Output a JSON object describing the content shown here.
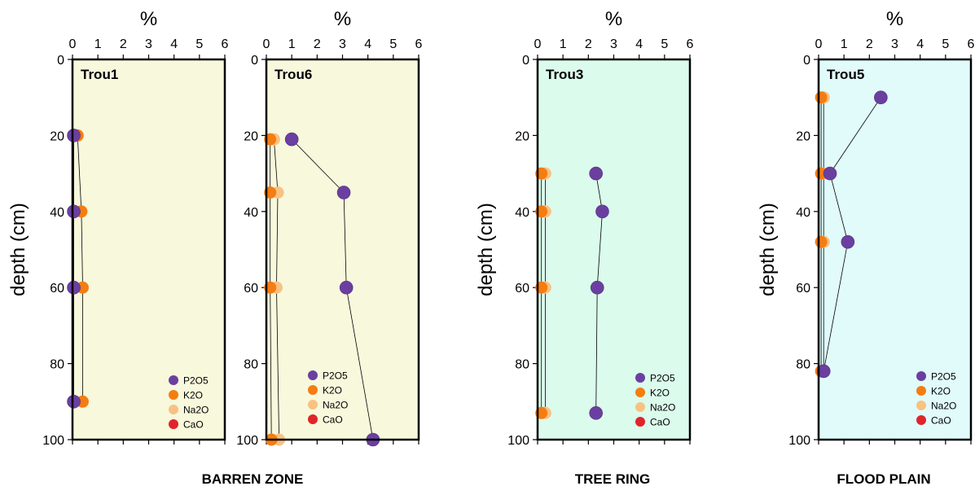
{
  "colors": {
    "P2O5": "#6b3fa0",
    "K2O": "#f47d12",
    "Na2O": "#f9c182",
    "CaO": "#e0242b",
    "barren_bg": "#f7f8dc",
    "treering_bg": "#dbfbec",
    "flood_bg": "#e0fbfa"
  },
  "chart_data": [
    {
      "type": "line",
      "title": "Trou1",
      "xlabel": "%",
      "ylabel": "depth (cm)",
      "xlim": [
        0,
        6
      ],
      "ylim": [
        100,
        0
      ],
      "xticks": [
        "0",
        "1",
        "2",
        "3",
        "4",
        "5",
        "6"
      ],
      "yticks": [
        "0",
        "20",
        "40",
        "60",
        "80",
        "100"
      ],
      "zone": "BARREN ZONE",
      "legend_position": "bottom-right",
      "series": [
        {
          "name": "P2O5",
          "x": [
            0.05,
            0.05,
            0.05,
            0.05
          ],
          "y": [
            20,
            40,
            60,
            90
          ]
        },
        {
          "name": "K2O",
          "x": [
            0.2,
            0.35,
            0.4,
            0.4
          ],
          "y": [
            20,
            40,
            60,
            90
          ]
        },
        {
          "name": "Na2O",
          "x": [],
          "y": []
        },
        {
          "name": "CaO",
          "x": [],
          "y": []
        }
      ]
    },
    {
      "type": "line",
      "title": "Trou6",
      "xlabel": "%",
      "ylabel": "",
      "xlim": [
        0,
        6
      ],
      "ylim": [
        100,
        0
      ],
      "xticks": [
        "0",
        "1",
        "2",
        "3",
        "4",
        "5",
        "6"
      ],
      "yticks": [
        "0",
        "20",
        "40",
        "60",
        "80",
        "100"
      ],
      "zone": "",
      "legend_position": "bottom-center",
      "series": [
        {
          "name": "P2O5",
          "x": [
            1.0,
            3.05,
            3.15,
            4.2
          ],
          "y": [
            21,
            35,
            60,
            100
          ]
        },
        {
          "name": "K2O",
          "x": [
            0.15,
            0.15,
            0.15,
            0.2
          ],
          "y": [
            21,
            35,
            60,
            100
          ]
        },
        {
          "name": "Na2O",
          "x": [
            0.3,
            0.45,
            0.4,
            0.5
          ],
          "y": [
            21,
            35,
            60,
            100
          ]
        },
        {
          "name": "CaO",
          "x": [],
          "y": []
        }
      ]
    },
    {
      "type": "line",
      "title": "Trou3",
      "xlabel": "%",
      "ylabel": "depth (cm)",
      "xlim": [
        0,
        6
      ],
      "ylim": [
        100,
        0
      ],
      "xticks": [
        "0",
        "1",
        "2",
        "3",
        "4",
        "5",
        "6"
      ],
      "yticks": [
        "0",
        "20",
        "40",
        "60",
        "80",
        "100"
      ],
      "zone": "TREE RING",
      "legend_position": "bottom-right",
      "series": [
        {
          "name": "P2O5",
          "x": [
            2.3,
            2.55,
            2.35,
            2.3
          ],
          "y": [
            30,
            40,
            60,
            93
          ]
        },
        {
          "name": "K2O",
          "x": [
            0.15,
            0.15,
            0.15,
            0.15
          ],
          "y": [
            30,
            40,
            60,
            93
          ]
        },
        {
          "name": "Na2O",
          "x": [
            0.3,
            0.3,
            0.3,
            0.3
          ],
          "y": [
            30,
            40,
            60,
            93
          ]
        },
        {
          "name": "CaO",
          "x": [],
          "y": []
        }
      ]
    },
    {
      "type": "line",
      "title": "Trou5",
      "xlabel": "%",
      "ylabel": "depth (cm)",
      "xlim": [
        0,
        6
      ],
      "ylim": [
        100,
        0
      ],
      "xticks": [
        "0",
        "1",
        "2",
        "3",
        "4",
        "5",
        "6"
      ],
      "yticks": [
        "0",
        "20",
        "40",
        "60",
        "80",
        "100"
      ],
      "zone": "FLOOD PLAIN",
      "legend_position": "bottom-right",
      "series": [
        {
          "name": "P2O5",
          "x": [
            2.45,
            0.45,
            1.15,
            0.2
          ],
          "y": [
            10,
            30,
            48,
            82
          ]
        },
        {
          "name": "K2O",
          "x": [
            0.1,
            0.1,
            0.1,
            0.1
          ],
          "y": [
            10,
            30,
            48,
            82
          ]
        },
        {
          "name": "Na2O",
          "x": [
            0.2,
            0.2,
            0.2,
            0.2
          ],
          "y": [
            10,
            30,
            48,
            82
          ]
        },
        {
          "name": "CaO",
          "x": [],
          "y": []
        }
      ]
    }
  ]
}
